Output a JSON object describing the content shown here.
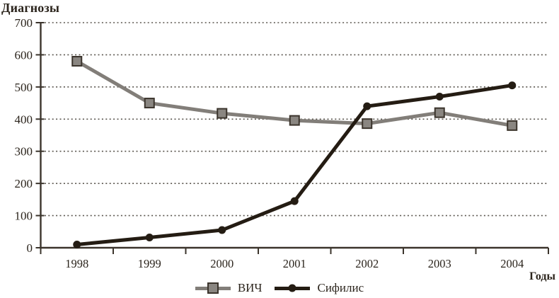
{
  "chart_data": {
    "type": "line",
    "title": "Диагнозы",
    "xlabel": "Годы",
    "ylabel": "Диагнозы",
    "categories": [
      "1998",
      "1999",
      "2000",
      "2001",
      "2002",
      "2003",
      "2004"
    ],
    "series": [
      {
        "name": "ВИЧ",
        "marker": "square",
        "line_color": "#827e79",
        "marker_fill": "#8a8681",
        "marker_stroke": "#3b342c",
        "values": [
          580,
          450,
          418,
          396,
          386,
          420,
          380
        ]
      },
      {
        "name": "Сифилис",
        "marker": "circle",
        "line_color": "#241c13",
        "marker_fill": "#241c13",
        "marker_stroke": "#241c13",
        "values": [
          10,
          32,
          55,
          145,
          440,
          470,
          505
        ]
      }
    ],
    "ylim": [
      0,
      700
    ],
    "yticks": [
      0,
      100,
      200,
      300,
      400,
      500,
      600,
      700
    ],
    "grid": "horizontal-dotted",
    "legend_position": "bottom-center",
    "axis_color": "#3b342c",
    "grid_color": "#5a554e",
    "text_color": "#2b241c",
    "background": "#ffffff"
  }
}
